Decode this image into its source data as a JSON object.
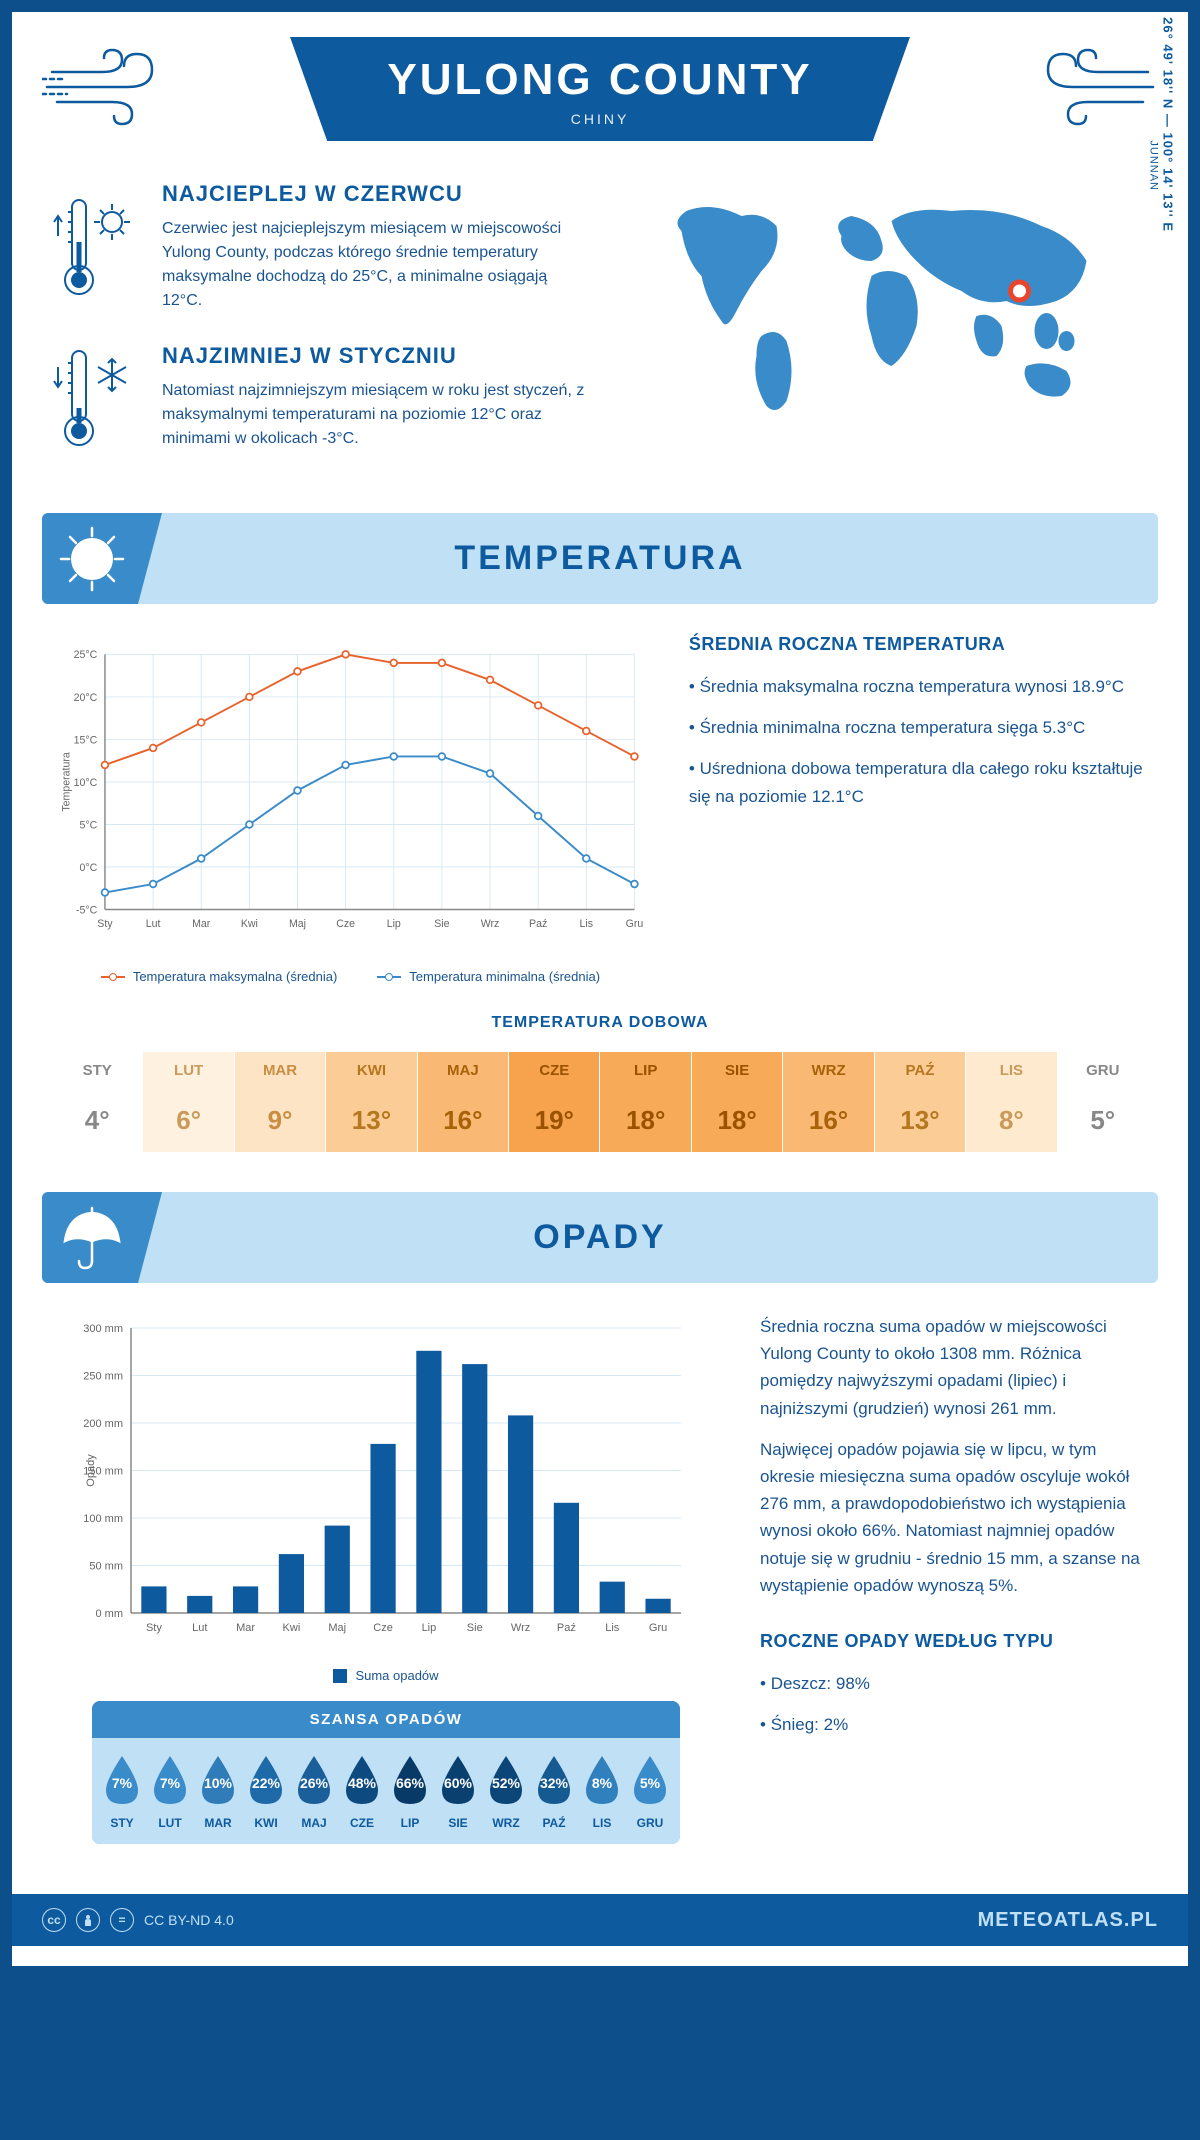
{
  "header": {
    "title": "YULONG COUNTY",
    "country": "CHINY",
    "region": "JUNNAN",
    "coords": "26° 49' 18'' N — 100° 14' 13'' E"
  },
  "intro": {
    "warm": {
      "title": "NAJCIEPLEJ W CZERWCU",
      "text": "Czerwiec jest najcieplejszym miesiącem w miejscowości Yulong County, podczas którego średnie temperatury maksymalne dochodzą do 25°C, a minimalne osiągają 12°C."
    },
    "cold": {
      "title": "NAJZIMNIEJ W STYCZNIU",
      "text": "Natomiast najzimniejszym miesiącem w roku jest styczeń, z maksymalnymi temperaturami na poziomie 12°C oraz minimami w okolicach -3°C."
    }
  },
  "temperature": {
    "section_title": "TEMPERATURA",
    "chart": {
      "type": "line",
      "months": [
        "Sty",
        "Lut",
        "Mar",
        "Kwi",
        "Maj",
        "Cze",
        "Lip",
        "Sie",
        "Wrz",
        "Paź",
        "Lis",
        "Gru"
      ],
      "max_series": [
        12,
        14,
        17,
        20,
        23,
        25,
        24,
        24,
        22,
        19,
        16,
        13
      ],
      "min_series": [
        -3,
        -2,
        1,
        5,
        9,
        12,
        13,
        13,
        11,
        6,
        1,
        -2
      ],
      "max_color": "#e8622c",
      "min_color": "#3a8bc9",
      "grid_color": "#d8e8f3",
      "axis_color": "#888",
      "ylabel": "Temperatura",
      "ylim": [
        -5,
        25
      ],
      "ytick_step": 5,
      "xlabel_fontsize": 11,
      "background_color": "#ffffff"
    },
    "legend": {
      "max_label": "Temperatura maksymalna (średnia)",
      "min_label": "Temperatura minimalna (średnia)"
    },
    "annual": {
      "title": "ŚREDNIA ROCZNA TEMPERATURA",
      "bullets": [
        "Średnia maksymalna roczna temperatura wynosi 18.9°C",
        "Średnia minimalna roczna temperatura sięga 5.3°C",
        "Uśredniona dobowa temperatura dla całego roku kształtuje się na poziomie 12.1°C"
      ]
    },
    "daily": {
      "title": "TEMPERATURA DOBOWA",
      "months": [
        "STY",
        "LUT",
        "MAR",
        "KWI",
        "MAJ",
        "CZE",
        "LIP",
        "SIE",
        "WRZ",
        "PAŹ",
        "LIS",
        "GRU"
      ],
      "values": [
        "4°",
        "6°",
        "9°",
        "13°",
        "16°",
        "19°",
        "18°",
        "18°",
        "16°",
        "13°",
        "8°",
        "5°"
      ],
      "cell_colors": [
        "#ffffff",
        "#fef1e0",
        "#fde4c4",
        "#fbcc95",
        "#f9b873",
        "#f7a24d",
        "#f7aa58",
        "#f7aa58",
        "#f9b873",
        "#fbcc95",
        "#fdeacf",
        "#ffffff"
      ],
      "text_colors": [
        "#888",
        "#c99a5a",
        "#c98e42",
        "#b5771f",
        "#a8620a",
        "#9b5200",
        "#9b5200",
        "#9b5200",
        "#a8620a",
        "#b5771f",
        "#c99a5a",
        "#888"
      ]
    }
  },
  "precipitation": {
    "section_title": "OPADY",
    "chart": {
      "type": "bar",
      "months": [
        "Sty",
        "Lut",
        "Mar",
        "Kwi",
        "Maj",
        "Cze",
        "Lip",
        "Sie",
        "Wrz",
        "Paź",
        "Lis",
        "Gru"
      ],
      "values": [
        28,
        18,
        28,
        62,
        92,
        178,
        276,
        262,
        208,
        116,
        33,
        15
      ],
      "bar_color": "#0d5a9e",
      "grid_color": "#d8e8f3",
      "axis_color": "#888",
      "ylabel": "Opady",
      "legend_label": "Suma opadów",
      "ylim": [
        0,
        300
      ],
      "ytick_step": 50,
      "bar_width": 0.55,
      "background_color": "#ffffff"
    },
    "text": {
      "p1": "Średnia roczna suma opadów w miejscowości Yulong County to około 1308 mm. Różnica pomiędzy najwyższymi opadami (lipiec) i najniższymi (grudzień) wynosi 261 mm.",
      "p2": "Najwięcej opadów pojawia się w lipcu, w tym okresie miesięczna suma opadów oscyluje wokół 276 mm, a prawdopodobieństwo ich wystąpienia wynosi około 66%. Natomiast najmniej opadów notuje się w grudniu - średnio 15 mm, a szanse na wystąpienie opadów wynoszą 5%."
    },
    "chance": {
      "title": "SZANSA OPADÓW",
      "months": [
        "STY",
        "LUT",
        "MAR",
        "KWI",
        "MAJ",
        "CZE",
        "LIP",
        "SIE",
        "WRZ",
        "PAŹ",
        "LIS",
        "GRU"
      ],
      "values": [
        "7%",
        "7%",
        "10%",
        "22%",
        "26%",
        "48%",
        "66%",
        "60%",
        "52%",
        "32%",
        "8%",
        "5%"
      ],
      "drop_colors": [
        "#3a8bc9",
        "#3a8bc9",
        "#2f7cb8",
        "#1e6aa8",
        "#1a5f9a",
        "#0d4a80",
        "#083a68",
        "#0a4070",
        "#0c4678",
        "#165a92",
        "#3080bd",
        "#3a8bc9"
      ]
    },
    "type": {
      "title": "ROCZNE OPADY WEDŁUG TYPU",
      "bullets": [
        "Deszcz: 98%",
        "Śnieg: 2%"
      ]
    }
  },
  "footer": {
    "license": "CC BY-ND 4.0",
    "site": "METEOATLAS.PL"
  },
  "colors": {
    "primary": "#0d5a9e",
    "light": "#bfe0f5",
    "mid": "#3a8bc9",
    "text": "#1a5490"
  }
}
